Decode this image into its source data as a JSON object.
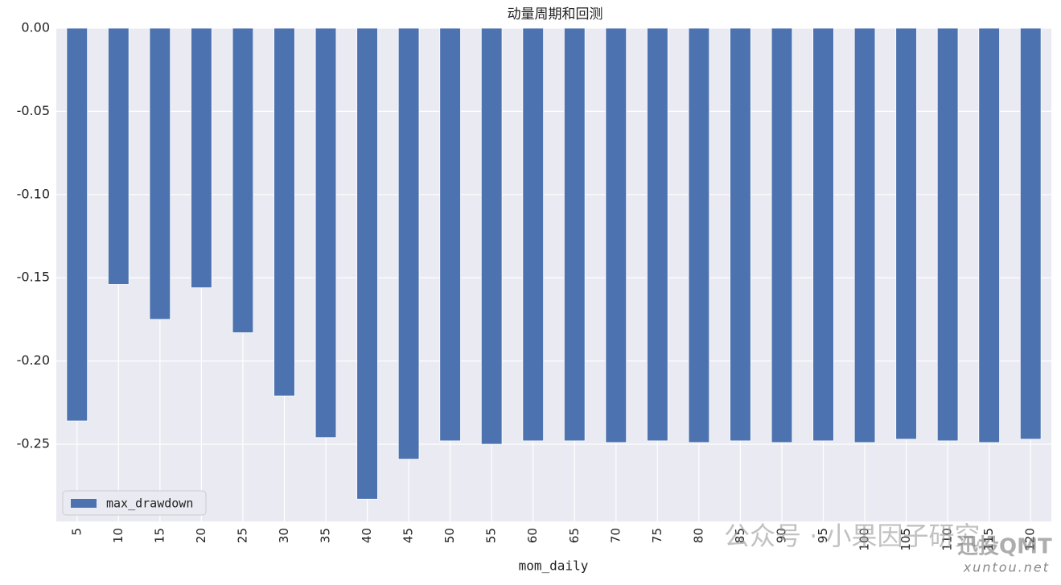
{
  "chart_data": {
    "type": "bar",
    "title": "动量周期和回测",
    "x_label": "mom_daily",
    "categories": [
      "5",
      "10",
      "15",
      "20",
      "25",
      "30",
      "35",
      "40",
      "45",
      "50",
      "55",
      "60",
      "65",
      "70",
      "75",
      "80",
      "85",
      "90",
      "95",
      "100",
      "105",
      "110",
      "115",
      "120"
    ],
    "series": [
      {
        "name": "max_drawdown",
        "color": "#4c72b0",
        "values": [
          -0.236,
          -0.154,
          -0.175,
          -0.156,
          -0.183,
          -0.221,
          -0.246,
          -0.283,
          -0.259,
          -0.248,
          -0.25,
          -0.248,
          -0.248,
          -0.249,
          -0.248,
          -0.249,
          -0.248,
          -0.249,
          -0.248,
          -0.249,
          -0.247,
          -0.248,
          -0.249,
          -0.247
        ]
      }
    ],
    "ylim": [
      -0.2964,
      0
    ],
    "yticks": [
      {
        "value": 0,
        "label": "0.00"
      },
      {
        "value": -0.05,
        "label": "-0.05"
      },
      {
        "value": -0.1,
        "label": "-0.10"
      },
      {
        "value": -0.15,
        "label": "-0.15"
      },
      {
        "value": -0.2,
        "label": "-0.20"
      },
      {
        "value": -0.25,
        "label": "-0.25"
      }
    ],
    "grid": true,
    "legend": "lower left",
    "watermark": [
      "公众号 · 小果因子研究",
      "迅投QMT",
      "xuntou.net"
    ]
  }
}
